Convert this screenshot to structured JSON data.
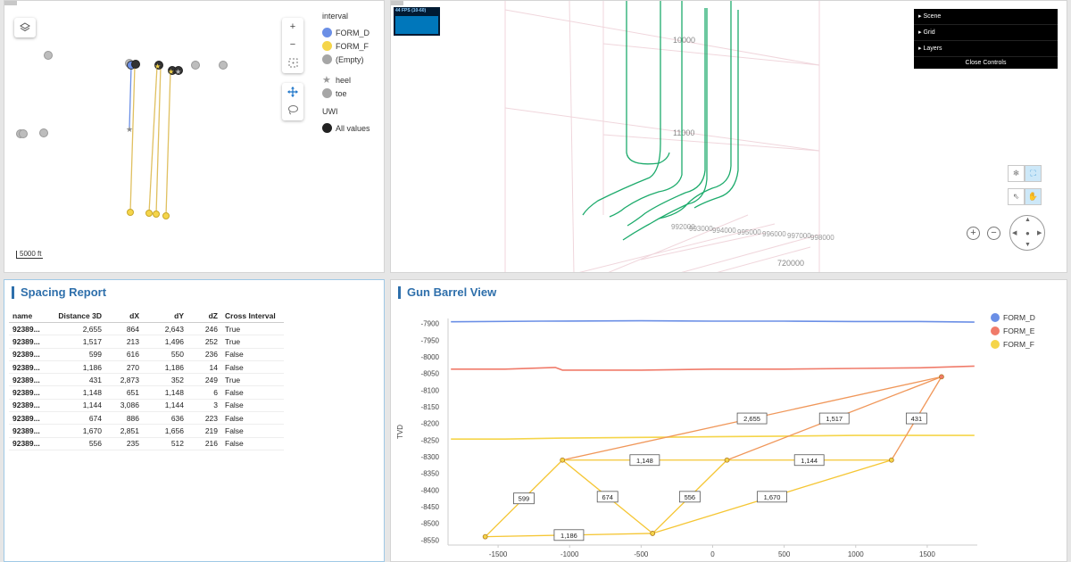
{
  "map": {
    "scale_label": "5000 ft",
    "layers_icon": "layers-icon",
    "zoom_in_label": "+",
    "zoom_out_label": "−",
    "legend": {
      "interval_title": "interval",
      "intervals": [
        {
          "label": "FORM_D",
          "color": "#6b8fe6"
        },
        {
          "label": "FORM_F",
          "color": "#f5d54a"
        },
        {
          "label": "(Empty)",
          "color": "#a6a6a6"
        }
      ],
      "shape_items": [
        {
          "label": "heel",
          "icon": "star-icon"
        },
        {
          "label": "toe",
          "icon": "circle-icon"
        }
      ],
      "uwi_title": "UWI",
      "uwi_items": [
        {
          "label": "All values",
          "color": "#222222"
        }
      ]
    }
  },
  "scene": {
    "fps_label": "44 FPS (10-60)",
    "controls": {
      "items": [
        "Scene",
        "Grid",
        "Layers"
      ],
      "close_label": "Close Controls"
    },
    "axis_labels": {
      "z1": "10000",
      "z2": "11000",
      "y1": "720000",
      "x_ticks": [
        "992000",
        "993000",
        "994000",
        "995000",
        "996000",
        "997000",
        "998000"
      ]
    }
  },
  "spacing": {
    "title": "Spacing Report",
    "columns": [
      "name",
      "Distance 3D",
      "dX",
      "dY",
      "dZ",
      "Cross Interval"
    ],
    "rows": [
      [
        "92389...",
        "2,655",
        "864",
        "2,643",
        "246",
        "True"
      ],
      [
        "92389...",
        "1,517",
        "213",
        "1,496",
        "252",
        "True"
      ],
      [
        "92389...",
        "599",
        "616",
        "550",
        "236",
        "False"
      ],
      [
        "92389...",
        "1,186",
        "270",
        "1,186",
        "14",
        "False"
      ],
      [
        "92389...",
        "431",
        "2,873",
        "352",
        "249",
        "True"
      ],
      [
        "92389...",
        "1,148",
        "651",
        "1,148",
        "6",
        "False"
      ],
      [
        "92389...",
        "1,144",
        "3,086",
        "1,144",
        "3",
        "False"
      ],
      [
        "92389...",
        "674",
        "886",
        "636",
        "223",
        "False"
      ],
      [
        "92389...",
        "1,670",
        "2,851",
        "1,656",
        "219",
        "False"
      ],
      [
        "92389...",
        "556",
        "235",
        "512",
        "216",
        "False"
      ]
    ]
  },
  "gun_barrel": {
    "title": "Gun Barrel View"
  },
  "chart_data": {
    "type": "line",
    "title": "Gun Barrel View",
    "xlabel": "",
    "ylabel": "TVD",
    "xlim": [
      -1850,
      1850
    ],
    "ylim": [
      -8565,
      -7885
    ],
    "x_ticks": [
      -1500,
      -1000,
      -500,
      0,
      500,
      1000,
      1500
    ],
    "y_ticks": [
      -7900,
      -7950,
      -8000,
      -8050,
      -8100,
      -8150,
      -8200,
      -8250,
      -8300,
      -8350,
      -8400,
      -8450,
      -8500,
      -8550
    ],
    "legend_position": "top-right",
    "series": [
      {
        "name": "FORM_D",
        "color": "#6b8fe6",
        "points": [
          [
            -1830,
            -7895
          ],
          [
            -1200,
            -7893
          ],
          [
            -500,
            -7892
          ],
          [
            0,
            -7893
          ],
          [
            500,
            -7893
          ],
          [
            1000,
            -7894
          ],
          [
            1450,
            -7894
          ],
          [
            1830,
            -7896
          ]
        ]
      },
      {
        "name": "FORM_E",
        "color": "#f07b6a",
        "points": [
          [
            -1830,
            -8037
          ],
          [
            -1450,
            -8037
          ],
          [
            -1100,
            -8032
          ],
          [
            -1050,
            -8040
          ],
          [
            -500,
            -8040
          ],
          [
            0,
            -8037
          ],
          [
            500,
            -8037
          ],
          [
            1000,
            -8035
          ],
          [
            1450,
            -8033
          ],
          [
            1830,
            -8028
          ]
        ]
      },
      {
        "name": "FORM_F",
        "color": "#f5d54a",
        "points": [
          [
            -1830,
            -8247
          ],
          [
            -1450,
            -8247
          ],
          [
            -1050,
            -8244
          ],
          [
            -500,
            -8242
          ],
          [
            0,
            -8240
          ],
          [
            500,
            -8238
          ],
          [
            1000,
            -8236
          ],
          [
            1450,
            -8236
          ],
          [
            1830,
            -8236
          ]
        ]
      }
    ],
    "wells": [
      {
        "id": "w1",
        "x": -1590,
        "y": -8540
      },
      {
        "id": "w2",
        "x": -1050,
        "y": -8310
      },
      {
        "id": "w3",
        "x": -420,
        "y": -8530
      },
      {
        "id": "w4",
        "x": 100,
        "y": -8310
      },
      {
        "id": "w5",
        "x": 1250,
        "y": -8310
      },
      {
        "id": "w6",
        "x": 1600,
        "y": -8060
      }
    ],
    "connections": [
      {
        "from": "w2",
        "to": "w6",
        "label": "2,655",
        "cross": true
      },
      {
        "from": "w4",
        "to": "w6",
        "label": "1,517",
        "cross": true
      },
      {
        "from": "w1",
        "to": "w2",
        "label": "599",
        "cross": false
      },
      {
        "from": "w1",
        "to": "w3",
        "label": "1,186",
        "cross": false
      },
      {
        "from": "w5",
        "to": "w6",
        "label": "431",
        "cross": true
      },
      {
        "from": "w2",
        "to": "w4",
        "label": "1,148",
        "cross": false
      },
      {
        "from": "w4",
        "to": "w5",
        "label": "1,144",
        "cross": false
      },
      {
        "from": "w2",
        "to": "w3",
        "label": "674",
        "cross": false
      },
      {
        "from": "w3",
        "to": "w5",
        "label": "1,670",
        "cross": false
      },
      {
        "from": "w3",
        "to": "w4",
        "label": "556",
        "cross": false
      }
    ]
  }
}
